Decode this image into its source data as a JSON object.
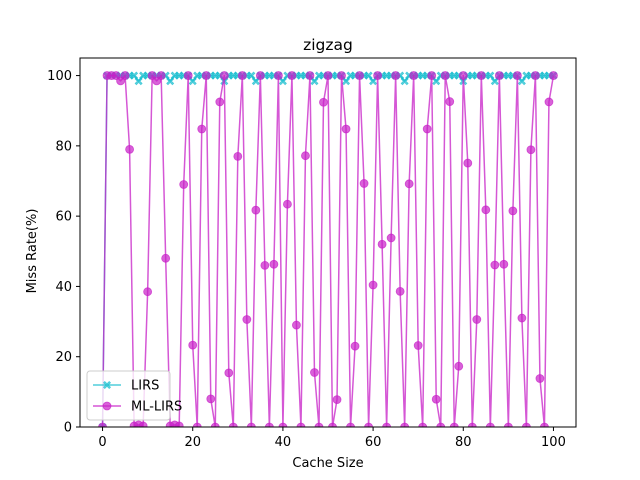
{
  "chart_data": {
    "type": "line",
    "title": "zigzag",
    "xlabel": "Cache Size",
    "ylabel": "Miss Rate(%)",
    "xlim": [
      -5,
      105
    ],
    "ylim": [
      0,
      105
    ],
    "xticks": [
      0,
      20,
      40,
      60,
      80,
      100
    ],
    "yticks": [
      0,
      20,
      40,
      60,
      80,
      100
    ],
    "grid": false,
    "legend_position": "lower-left",
    "series": [
      {
        "name": "LIRS",
        "color": "#17becf",
        "marker": "x",
        "x": [
          0,
          1,
          2,
          3,
          4,
          5,
          6,
          7,
          8,
          9,
          10,
          11,
          12,
          13,
          14,
          15,
          16,
          17,
          18,
          19,
          20,
          21,
          22,
          23,
          24,
          25,
          26,
          27,
          28,
          29,
          30,
          31,
          32,
          33,
          34,
          35,
          36,
          37,
          38,
          39,
          40,
          41,
          42,
          43,
          44,
          45,
          46,
          47,
          48,
          49,
          50,
          51,
          52,
          53,
          54,
          55,
          56,
          57,
          58,
          59,
          60,
          61,
          62,
          63,
          64,
          65,
          66,
          67,
          68,
          69,
          70,
          71,
          72,
          73,
          74,
          75,
          76,
          77,
          78,
          79,
          80,
          81,
          82,
          83,
          84,
          85,
          86,
          87,
          88,
          89,
          90,
          91,
          92,
          93,
          94,
          95,
          96,
          97,
          98,
          99,
          100
        ],
        "y": [
          0,
          100,
          100,
          100,
          100,
          100,
          100,
          100,
          98.4,
          100,
          100,
          100,
          100,
          100,
          100,
          98.4,
          100,
          100,
          100,
          100,
          98.4,
          100,
          100,
          100,
          100,
          100,
          100,
          98.4,
          100,
          100,
          100,
          100,
          100,
          100,
          98.4,
          100,
          100,
          100,
          100,
          100,
          98.4,
          100,
          100,
          100,
          100,
          100,
          100,
          98.4,
          100,
          100,
          100,
          100,
          100,
          100,
          98.4,
          100,
          100,
          100,
          100,
          100,
          98.4,
          100,
          100,
          100,
          100,
          100,
          100,
          98.4,
          100,
          100,
          100,
          100,
          100,
          100,
          98.4,
          100,
          100,
          100,
          100,
          100,
          98.4,
          100,
          100,
          100,
          100,
          100,
          100,
          98.4,
          100,
          100,
          100,
          100,
          100,
          98.4,
          100,
          100,
          100,
          100,
          100,
          100,
          100
        ]
      },
      {
        "name": "ML-LIRS",
        "color": "#c71fc7",
        "marker": "o",
        "x": [
          0,
          1,
          2,
          3,
          4,
          5,
          6,
          7,
          8,
          9,
          10,
          11,
          12,
          13,
          14,
          15,
          16,
          17,
          18,
          19,
          20,
          21,
          22,
          23,
          24,
          25,
          26,
          27,
          28,
          29,
          30,
          31,
          32,
          33,
          34,
          35,
          36,
          37,
          38,
          39,
          40,
          41,
          42,
          43,
          44,
          45,
          46,
          47,
          48,
          49,
          50,
          51,
          52,
          53,
          54,
          55,
          56,
          57,
          58,
          59,
          60,
          61,
          62,
          63,
          64,
          65,
          66,
          67,
          68,
          69,
          70,
          71,
          72,
          73,
          74,
          75,
          76,
          77,
          78,
          79,
          80,
          81,
          82,
          83,
          84,
          85,
          86,
          87,
          88,
          89,
          90,
          91,
          92,
          93,
          94,
          95,
          96,
          97,
          98,
          99,
          100
        ],
        "y": [
          0,
          100,
          100,
          100,
          98.5,
          100,
          79,
          0.3,
          0.6,
          0.3,
          38.5,
          100,
          98.5,
          100,
          48,
          0.3,
          0.6,
          0.3,
          69,
          100,
          23.3,
          0,
          84.8,
          100,
          8,
          0,
          92.5,
          100,
          15.4,
          0,
          77,
          100,
          30.6,
          0,
          61.7,
          100,
          46,
          0,
          46.3,
          100,
          0,
          63.4,
          100,
          29,
          0,
          77.2,
          100,
          15.5,
          0,
          92.4,
          100,
          0,
          7.8,
          100,
          84.8,
          0,
          23,
          100,
          69.3,
          0,
          40.4,
          100,
          52,
          0,
          53.8,
          100,
          38.6,
          0,
          69.2,
          100,
          23.2,
          0,
          84.8,
          100,
          7.9,
          0,
          100,
          92.6,
          0,
          17.3,
          100,
          75.1,
          0,
          30.6,
          100,
          61.8,
          0,
          46.1,
          100,
          46.3,
          0,
          61.5,
          100,
          31,
          0,
          78.9,
          100,
          13.8,
          0,
          92.5,
          100
        ]
      }
    ]
  }
}
